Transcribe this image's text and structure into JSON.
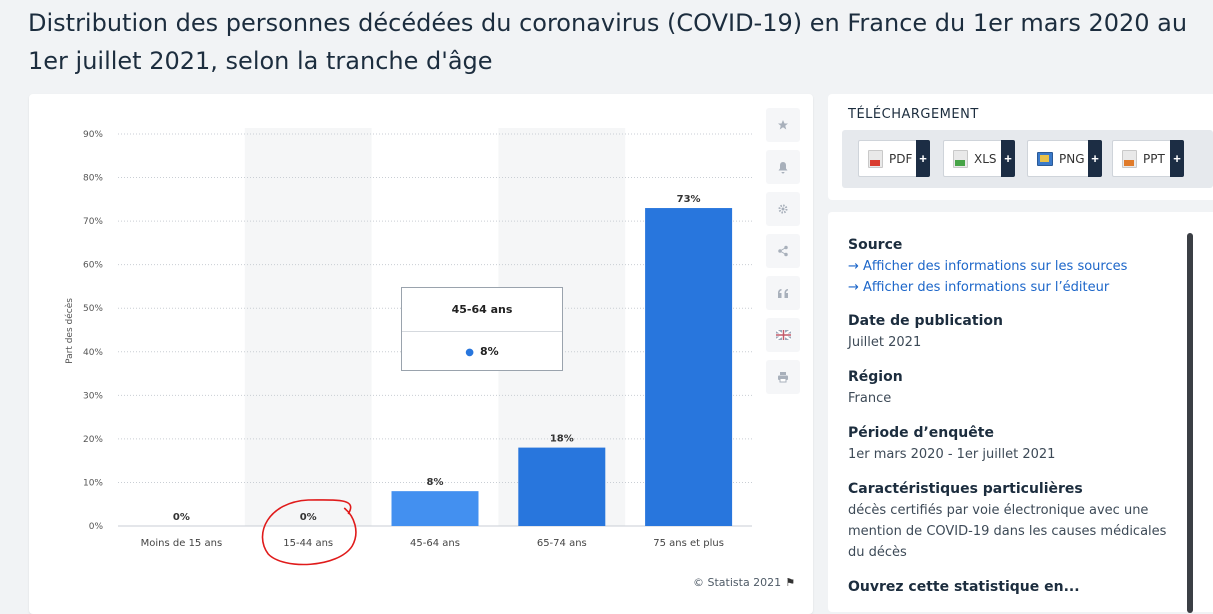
{
  "page": {
    "title": "Distribution des personnes décédées du coronavirus (COVID-19) en France du 1er mars 2020 au 1er juillet 2021, selon la tranche d'âge"
  },
  "chart_data": {
    "type": "bar",
    "categories": [
      "Moins de 15 ans",
      "15-44 ans",
      "45-64 ans",
      "65-74 ans",
      "75 ans et plus"
    ],
    "values": [
      0,
      0,
      8,
      18,
      73
    ],
    "data_labels": [
      "0%",
      "0%",
      "8%",
      "18%",
      "73%"
    ],
    "ylabel": "Part des décès",
    "yticks": [
      "0%",
      "10%",
      "20%",
      "30%",
      "40%",
      "50%",
      "60%",
      "70%",
      "80%",
      "90%"
    ],
    "ylim": [
      0,
      90
    ],
    "grid": true,
    "colors": {
      "bar": "#2876dd",
      "bar_hover": "#4390f0",
      "band": "#f5f6f7"
    },
    "highlighted_category": "45-64 ans",
    "annotation_circled_category": "15-44 ans"
  },
  "tooltip": {
    "title": "45-64 ans",
    "value": "8%"
  },
  "tools": {
    "icons": [
      "star-icon",
      "bell-icon",
      "gear-icon",
      "share-icon",
      "quote-icon",
      "flag-uk-icon",
      "print-icon"
    ]
  },
  "copyright": {
    "text": "© Statista 2021"
  },
  "download": {
    "title": "TÉLÉCHARGEMENT",
    "buttons": [
      {
        "label": "PDF",
        "color": "#d93c2f"
      },
      {
        "label": "XLS",
        "color": "#47a447"
      },
      {
        "label": "PNG",
        "color": "#3a79c9"
      },
      {
        "label": "PPT",
        "color": "#e07b2a"
      }
    ],
    "plus": "+"
  },
  "info": {
    "source_heading": "Source",
    "source_link_1": "→ Afficher des informations sur les sources",
    "source_link_2": "→ Afficher des informations sur l’éditeur",
    "pub_heading": "Date de publication",
    "pub_value": "Juillet 2021",
    "region_heading": "Région",
    "region_value": "France",
    "period_heading": "Période d’enquête",
    "period_value": "1er mars 2020 - 1er juillet 2021",
    "features_heading": "Caractéristiques particulières",
    "features_value": "décès certifiés par voie électronique avec une mention de COVID-19 dans les causes médicales du décès",
    "open_heading": "Ouvrez cette statistique en..."
  }
}
